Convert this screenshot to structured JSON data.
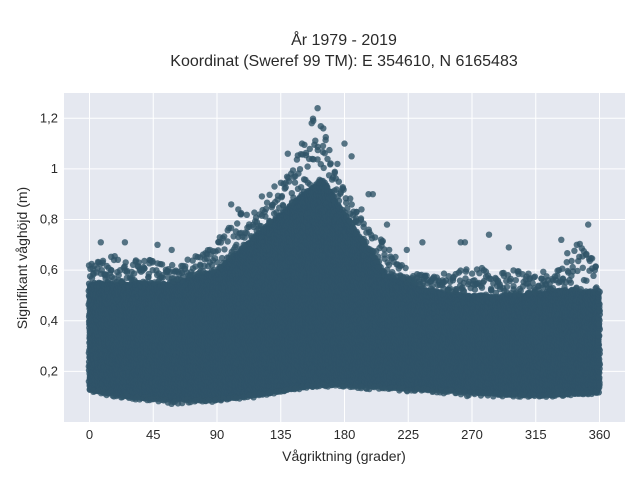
{
  "chart_data": {
    "type": "scatter",
    "title_line1": "År 1979 - 2019",
    "title_line2": "Koordinat (Sweref 99 TM): E 354610, N 6165483",
    "xlabel": "Vågriktning (grader)",
    "ylabel": "Signifikant våghöjd (m)",
    "xlim": [
      -18,
      378
    ],
    "ylim": [
      0,
      1.3
    ],
    "x_ticks": [
      0,
      45,
      90,
      135,
      180,
      225,
      270,
      315,
      360
    ],
    "x_tick_labels": [
      "0",
      "45",
      "90",
      "135",
      "180",
      "225",
      "270",
      "315",
      "360"
    ],
    "y_ticks": [
      0.2,
      0.4,
      0.6,
      0.8,
      1.0,
      1.2
    ],
    "y_tick_labels": [
      "0,2",
      "0,4",
      "0,6",
      "0,8",
      "1",
      "1,2"
    ],
    "grid": true,
    "colors": {
      "marker": "#2f5468",
      "plot_background": "#e5e8f0",
      "grid": "#ffffff"
    },
    "envelope": [
      {
        "x": 0,
        "min": 0.12,
        "max": 0.62
      },
      {
        "x": 15,
        "min": 0.1,
        "max": 0.66
      },
      {
        "x": 30,
        "min": 0.09,
        "max": 0.64
      },
      {
        "x": 45,
        "min": 0.08,
        "max": 0.64
      },
      {
        "x": 60,
        "min": 0.07,
        "max": 0.62
      },
      {
        "x": 75,
        "min": 0.08,
        "max": 0.66
      },
      {
        "x": 90,
        "min": 0.08,
        "max": 0.7
      },
      {
        "x": 105,
        "min": 0.09,
        "max": 0.82
      },
      {
        "x": 120,
        "min": 0.1,
        "max": 0.88
      },
      {
        "x": 135,
        "min": 0.12,
        "max": 0.96
      },
      {
        "x": 150,
        "min": 0.13,
        "max": 1.08
      },
      {
        "x": 160,
        "min": 0.14,
        "max": 1.24
      },
      {
        "x": 170,
        "min": 0.14,
        "max": 1.1
      },
      {
        "x": 180,
        "min": 0.14,
        "max": 0.92
      },
      {
        "x": 195,
        "min": 0.13,
        "max": 0.78
      },
      {
        "x": 210,
        "min": 0.13,
        "max": 0.7
      },
      {
        "x": 225,
        "min": 0.12,
        "max": 0.6
      },
      {
        "x": 240,
        "min": 0.12,
        "max": 0.58
      },
      {
        "x": 255,
        "min": 0.11,
        "max": 0.6
      },
      {
        "x": 270,
        "min": 0.1,
        "max": 0.62
      },
      {
        "x": 285,
        "min": 0.1,
        "max": 0.6
      },
      {
        "x": 300,
        "min": 0.1,
        "max": 0.6
      },
      {
        "x": 315,
        "min": 0.1,
        "max": 0.58
      },
      {
        "x": 330,
        "min": 0.1,
        "max": 0.64
      },
      {
        "x": 345,
        "min": 0.11,
        "max": 0.72
      },
      {
        "x": 360,
        "min": 0.11,
        "max": 0.62
      }
    ],
    "dense_core": [
      {
        "x": 0,
        "min": 0.13,
        "max": 0.55
      },
      {
        "x": 30,
        "min": 0.1,
        "max": 0.55
      },
      {
        "x": 60,
        "min": 0.09,
        "max": 0.55
      },
      {
        "x": 90,
        "min": 0.09,
        "max": 0.6
      },
      {
        "x": 120,
        "min": 0.11,
        "max": 0.75
      },
      {
        "x": 150,
        "min": 0.14,
        "max": 0.9
      },
      {
        "x": 165,
        "min": 0.15,
        "max": 0.96
      },
      {
        "x": 180,
        "min": 0.15,
        "max": 0.82
      },
      {
        "x": 210,
        "min": 0.14,
        "max": 0.58
      },
      {
        "x": 240,
        "min": 0.13,
        "max": 0.52
      },
      {
        "x": 270,
        "min": 0.12,
        "max": 0.5
      },
      {
        "x": 300,
        "min": 0.11,
        "max": 0.5
      },
      {
        "x": 330,
        "min": 0.11,
        "max": 0.52
      },
      {
        "x": 360,
        "min": 0.12,
        "max": 0.52
      }
    ],
    "outliers": [
      {
        "x": 161,
        "y": 1.24
      },
      {
        "x": 158,
        "y": 1.19
      },
      {
        "x": 165,
        "y": 1.16
      },
      {
        "x": 150,
        "y": 1.1
      },
      {
        "x": 180,
        "y": 1.1
      },
      {
        "x": 140,
        "y": 1.06
      },
      {
        "x": 185,
        "y": 1.05
      },
      {
        "x": 155,
        "y": 1.04
      },
      {
        "x": 175,
        "y": 1.02
      },
      {
        "x": 200,
        "y": 0.9
      },
      {
        "x": 197,
        "y": 0.9
      },
      {
        "x": 105,
        "y": 0.84
      },
      {
        "x": 100,
        "y": 0.86
      },
      {
        "x": 192,
        "y": 0.84
      },
      {
        "x": 210,
        "y": 0.78
      },
      {
        "x": 352,
        "y": 0.78
      },
      {
        "x": 282,
        "y": 0.74
      },
      {
        "x": 265,
        "y": 0.71
      },
      {
        "x": 262,
        "y": 0.71
      },
      {
        "x": 8,
        "y": 0.71
      },
      {
        "x": 25,
        "y": 0.71
      },
      {
        "x": 333,
        "y": 0.72
      },
      {
        "x": 344,
        "y": 0.7
      },
      {
        "x": 235,
        "y": 0.71
      },
      {
        "x": 48,
        "y": 0.7
      },
      {
        "x": 58,
        "y": 0.68
      },
      {
        "x": 296,
        "y": 0.69
      },
      {
        "x": 224,
        "y": 0.68
      },
      {
        "x": 85,
        "y": 0.68
      },
      {
        "x": 92,
        "y": 0.73
      }
    ]
  }
}
